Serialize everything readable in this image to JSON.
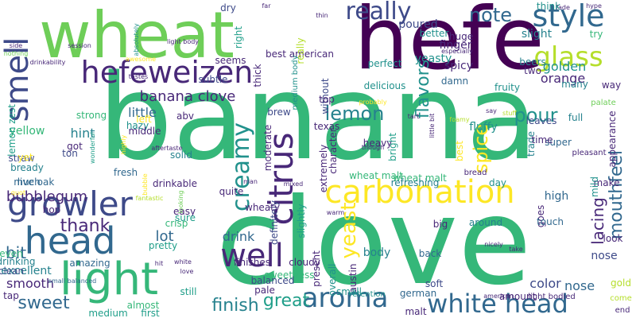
{
  "colors": {
    "background": "#ffffff",
    "c1": "#35b779",
    "c2": "#440154",
    "c3": "#31688e",
    "c4": "#26828e",
    "c5": "#3e4a89",
    "c6": "#fde725",
    "c7": "#6ece58",
    "c8": "#b5de2b",
    "c9": "#1f9e89",
    "c10": "#482878",
    "c11": "#21918c",
    "c12": "#482475"
  },
  "words": [
    "banana",
    "clove",
    "hefe",
    "wheat",
    "carbonation",
    "growler",
    "head",
    "light",
    "smell",
    "style",
    "hefeweizen",
    "aroma",
    "white head",
    "well",
    "citrus",
    "glass",
    "creamy",
    "really",
    "banana clove",
    "lemon",
    "mouthfeel",
    "finish",
    "great",
    "pour",
    "yeast",
    "note",
    "flavors",
    "spice",
    "lacing",
    "sweet",
    "bit",
    "thank",
    "bubblegum",
    "hint",
    "little",
    "lot",
    "smooth",
    "drink",
    "nose",
    "color",
    "yellow",
    "orange",
    "golden",
    "slight",
    "yeasty",
    "finger",
    "spicy",
    "poured",
    "body",
    "excellent",
    "hazy",
    "full",
    "strong",
    "texas",
    "heavy",
    "cloudy",
    "fresh",
    "much",
    "straw",
    "bready",
    "lemon zest",
    "live oak",
    "wheat malt",
    "wheat malt",
    "refreshing",
    "day",
    "super",
    "fruity",
    "perfect",
    "delicious",
    "beers",
    "two",
    "damn",
    "huge",
    "better",
    "best american",
    "appearance",
    "medium body",
    "moderate",
    "extremely",
    "character",
    "bright",
    "slightly",
    "present",
    "overall",
    "austin",
    "german",
    "malt",
    "back",
    "soft",
    "amount",
    "sweetness",
    "balanced",
    "pale",
    "still",
    "almost",
    "first",
    "medium",
    "tap",
    "clean",
    "even",
    "drinking",
    "amazing",
    "pretty",
    "crisp",
    "easy",
    "sure",
    "hop",
    "solid",
    "drinkable",
    "quite",
    "make",
    "high",
    "goes",
    "mild",
    "trade",
    "look",
    "touch",
    "big",
    "around",
    "nose",
    "small",
    "retention",
    "leaves",
    "time",
    "way",
    "many",
    "palate",
    "gold",
    "come",
    "end",
    "pleasant",
    "seems",
    "subtle",
    "abv",
    "left",
    "got",
    "ton",
    "thick",
    "without",
    "top",
    "brew",
    "definitely",
    "wheaty",
    "finishes",
    "fluffy",
    "really",
    "right",
    "dry",
    "far",
    "thin",
    "fade",
    "hype",
    "think",
    "try",
    "especially",
    "light body",
    "session",
    "nothing",
    "drinkability",
    "absolutely",
    "awesome",
    "tastes",
    "aftertaste",
    "wonderful",
    "highly",
    "probably",
    "bubble",
    "fantastic",
    "quot",
    "hit",
    "white",
    "love",
    "small balanced",
    "warm",
    "man",
    "mixed",
    "tart",
    "foamy",
    "say",
    "stuff",
    "light bodied",
    "american",
    "nicely",
    "take",
    "best",
    "bread",
    "little bit",
    "though",
    "looking",
    "yet",
    "middle",
    "side"
  ]
}
